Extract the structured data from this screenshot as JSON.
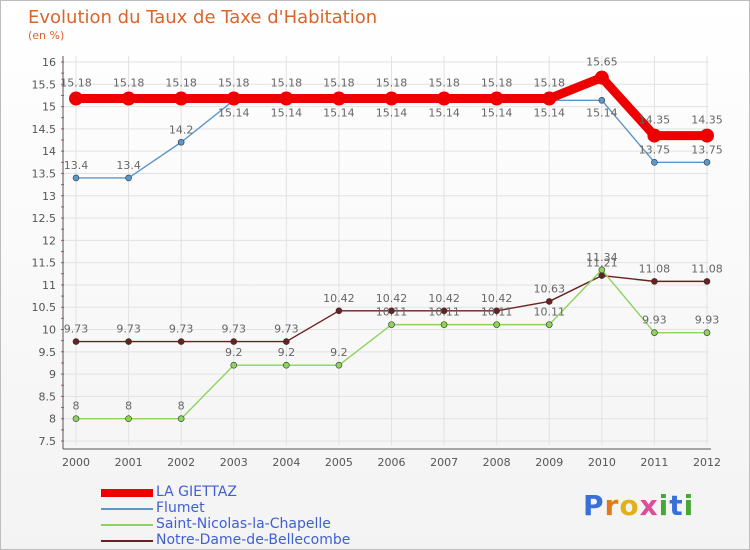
{
  "chart_data": {
    "type": "line",
    "title": "Evolution du Taux de Taxe d'Habitation",
    "unit_label": "(en %)",
    "x": [
      "2000",
      "2001",
      "2002",
      "2003",
      "2004",
      "2005",
      "2006",
      "2007",
      "2008",
      "2009",
      "2010",
      "2011",
      "2012"
    ],
    "y_ticks": [
      "7.5",
      "8",
      "8.5",
      "9",
      "9.5",
      "10",
      "10.5",
      "11",
      "11.5",
      "12",
      "12.5",
      "13",
      "13.5",
      "14",
      "14.5",
      "15",
      "15.5",
      "16"
    ],
    "ylim": [
      7.5,
      16
    ],
    "grid": true,
    "series": [
      {
        "name": "Notre-Dame-de-Bellecombe",
        "color": "#6b1f1f",
        "values": [
          9.73,
          9.73,
          9.73,
          9.73,
          9.73,
          10.42,
          10.42,
          10.42,
          10.42,
          10.63,
          11.21,
          11.08,
          11.08
        ],
        "labels": [
          "9.73",
          "9.73",
          "9.73",
          "9.73",
          "9.73",
          "10.42",
          "10.42",
          "10.42",
          "10.42",
          "10.63",
          "11.21",
          "11.08",
          "11.08"
        ]
      },
      {
        "name": "Saint-Nicolas-la-Chapelle",
        "color": "#8fd35f",
        "values": [
          8,
          8,
          8,
          9.2,
          9.2,
          9.2,
          10.11,
          10.11,
          10.11,
          10.11,
          11.34,
          9.93,
          9.93
        ],
        "labels": [
          "8",
          "8",
          "8",
          "9.2",
          "9.2",
          "9.2",
          "10.11",
          "10.11",
          "10.11",
          "10.11",
          "11.34",
          "9.93",
          "9.93"
        ]
      },
      {
        "name": "Flumet",
        "color": "#5b97c9",
        "values": [
          13.4,
          13.4,
          14.2,
          15.14,
          15.14,
          15.14,
          15.14,
          15.14,
          15.14,
          15.14,
          15.14,
          13.75,
          13.75
        ],
        "labels": [
          "13.4",
          "13.4",
          "14.2",
          "15.14",
          "15.14",
          "15.14",
          "15.14",
          "15.14",
          "15.14",
          "15.14",
          "15.14",
          "13.75",
          "13.75"
        ]
      },
      {
        "name": "LA GIETTAZ",
        "color": "#ee0000",
        "values": [
          15.18,
          15.18,
          15.18,
          15.18,
          15.18,
          15.18,
          15.18,
          15.18,
          15.18,
          15.18,
          15.65,
          14.35,
          14.35
        ],
        "labels": [
          "15.18",
          "15.18",
          "15.18",
          "15.18",
          "15.18",
          "15.18",
          "15.18",
          "15.18",
          "15.18",
          "15.18",
          "15.65",
          "14.35",
          "14.35"
        ]
      }
    ],
    "legend": {
      "placement": "bottom",
      "items": [
        "LA GIETTAZ",
        "Flumet",
        "Saint-Nicolas-la-Chapelle",
        "Notre-Dame-de-Bellecombe"
      ]
    }
  },
  "logo": {
    "text": "Proxiti"
  }
}
